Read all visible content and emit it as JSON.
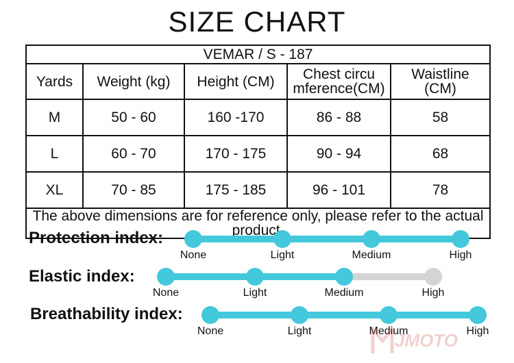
{
  "title": "SIZE CHART",
  "table": {
    "model": "VEMAR / S - 187",
    "headers": {
      "yards": "Yards",
      "weight": "Weight (kg)",
      "height": "Height (CM)",
      "chest_line1": "Chest circu",
      "chest_line2": "mference(CM)",
      "waist_line1": "Waistline",
      "waist_line2": "(CM)"
    },
    "rows": [
      {
        "size": "M",
        "weight": "50 - 60",
        "height": "160 -170",
        "chest": "86 - 88",
        "waist": "58"
      },
      {
        "size": "L",
        "weight": "60 - 70",
        "height": "170 - 175",
        "chest": "90 - 94",
        "waist": "68"
      },
      {
        "size": "XL",
        "weight": "70 - 85",
        "height": "175 - 185",
        "chest": "96 - 101",
        "waist": "78"
      }
    ],
    "note": "The above dimensions are for reference only, please refer to the actual product."
  },
  "indices": [
    {
      "label": "Protection index:",
      "levels": [
        "None",
        "Light",
        "Medium",
        "High"
      ],
      "level": 1.0
    },
    {
      "label": "Elastic index:",
      "levels": [
        "None",
        "Light",
        "Medium",
        "High"
      ],
      "level": 0.6667
    },
    {
      "label": "Breathability index:",
      "levels": [
        "None",
        "Light",
        "Medium",
        "High"
      ],
      "level": 1.0
    }
  ],
  "colors": {
    "active": "#44c8dc",
    "inactive": "#d4d4d4",
    "text": "#111111"
  },
  "watermark": "MJMOTO"
}
